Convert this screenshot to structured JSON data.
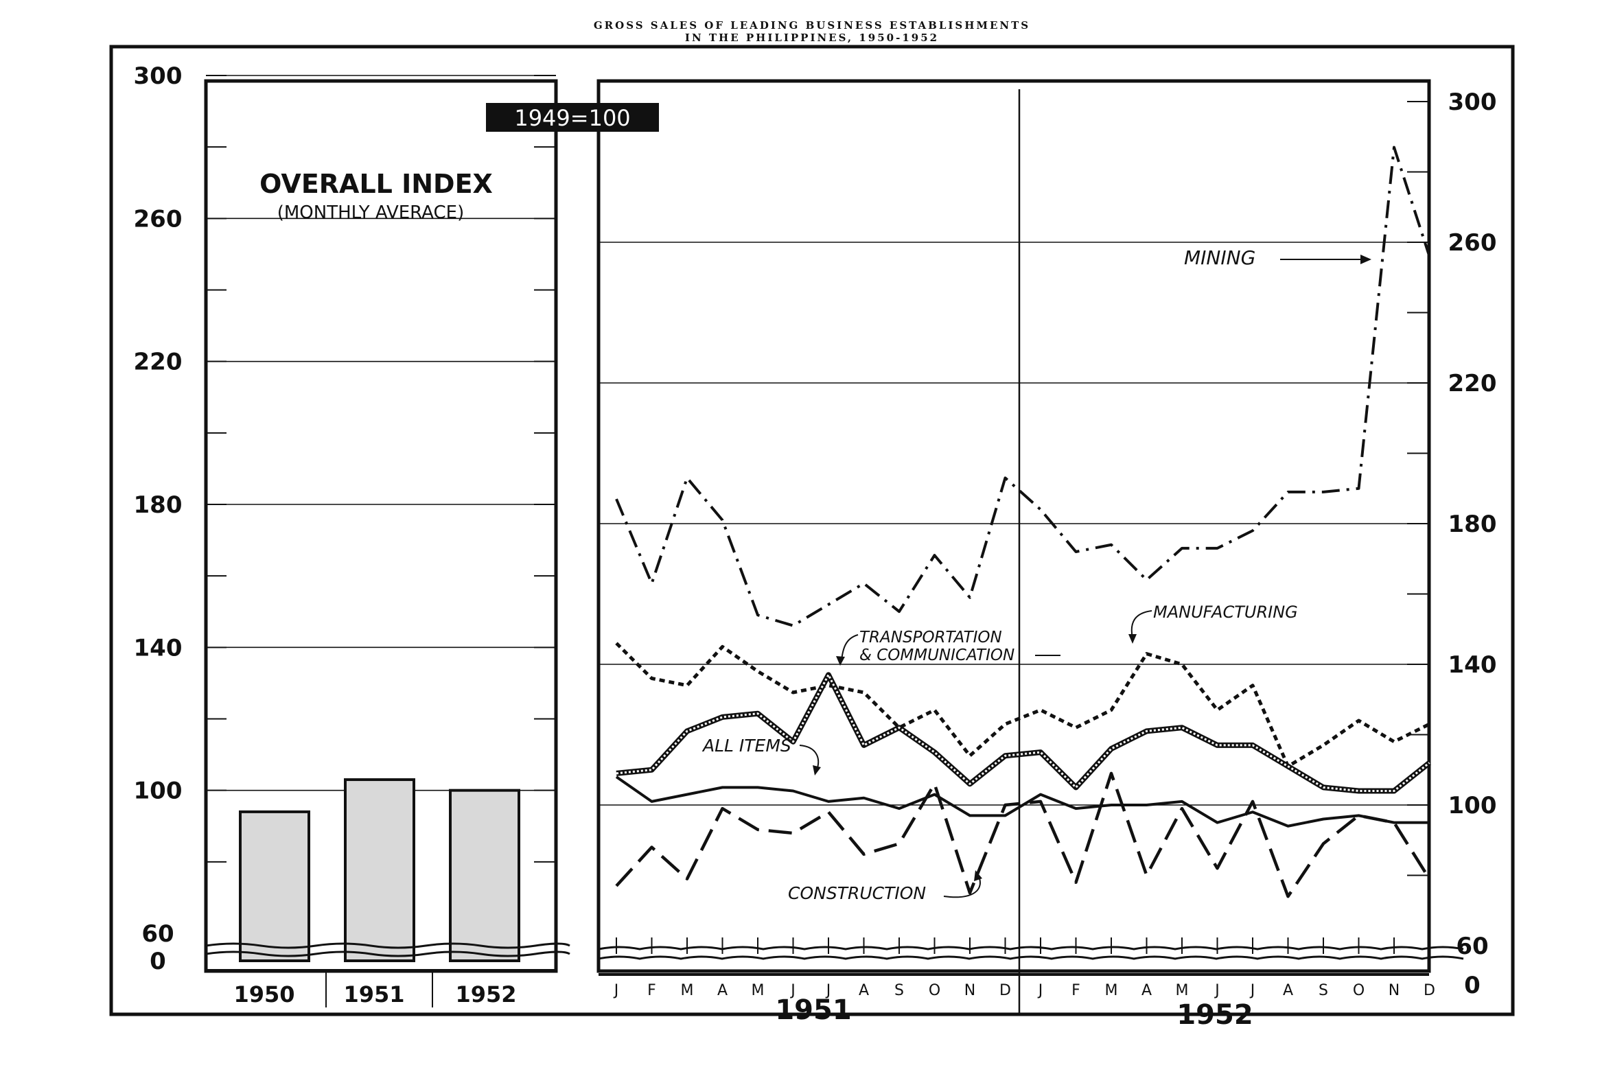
{
  "title_line1": "GROSS SALES OF LEADING BUSINESS ESTABLISHMENTS",
  "title_line2": "IN THE PHILIPPINES, 1950-1952",
  "base_label": "1949=100",
  "colors": {
    "ink": "#111111",
    "paper": "#ffffff",
    "bar_fill": "#d9d9d9"
  },
  "chart_data": [
    {
      "type": "bar",
      "title": "OVERALL INDEX",
      "subtitle": "(MONTHLY AVERACE)",
      "categories": [
        "1950",
        "1951",
        "1952"
      ],
      "values": [
        94,
        103,
        100
      ],
      "ylim": [
        0,
        300
      ],
      "yticks": [
        0,
        60,
        100,
        140,
        180,
        220,
        260,
        300
      ],
      "axis_break": "between 0 and 60",
      "grid": true
    },
    {
      "type": "line",
      "months": [
        "J",
        "F",
        "M",
        "A",
        "M",
        "J",
        "J",
        "A",
        "S",
        "O",
        "N",
        "D",
        "J",
        "F",
        "M",
        "A",
        "M",
        "J",
        "J",
        "A",
        "S",
        "O",
        "N",
        "D"
      ],
      "years": [
        "1951",
        "1952"
      ],
      "ylim": [
        0,
        300
      ],
      "yticks": [
        0,
        60,
        100,
        140,
        180,
        220,
        260,
        300
      ],
      "axis_break": "between 0 and 60",
      "grid": true,
      "series": [
        {
          "name": "MINING",
          "style": "dash-dot",
          "values": [
            187,
            163,
            193,
            181,
            154,
            151,
            157,
            163,
            155,
            171,
            159,
            193,
            184,
            172,
            174,
            164,
            173,
            173,
            178,
            189,
            189,
            190,
            287,
            256
          ]
        },
        {
          "name": "MANUFACTURING",
          "style": "dotted",
          "values": [
            146,
            136,
            134,
            145,
            138,
            132,
            134,
            132,
            122,
            127,
            114,
            123,
            127,
            122,
            127,
            143,
            140,
            127,
            134,
            111,
            117,
            124,
            118,
            123
          ]
        },
        {
          "name": "TRANSPORTATION & COMMUNICATION",
          "style": "double",
          "values": [
            109,
            110,
            121,
            125,
            126,
            118,
            137,
            117,
            122,
            115,
            106,
            114,
            115,
            105,
            116,
            121,
            122,
            117,
            117,
            111,
            105,
            104,
            104,
            112
          ]
        },
        {
          "name": "ALL ITEMS",
          "style": "solid",
          "values": [
            108,
            101,
            103,
            105,
            105,
            104,
            101,
            102,
            99,
            103,
            97,
            97,
            103,
            99,
            100,
            100,
            101,
            95,
            98,
            94,
            96,
            97,
            95,
            95
          ]
        },
        {
          "name": "CONSTRUCTION",
          "style": "long-dash",
          "values": [
            77,
            88,
            79,
            99,
            93,
            92,
            98,
            86,
            89,
            106,
            75,
            100,
            101,
            78,
            109,
            80,
            99,
            82,
            101,
            74,
            89,
            97,
            95,
            79
          ]
        }
      ]
    }
  ]
}
